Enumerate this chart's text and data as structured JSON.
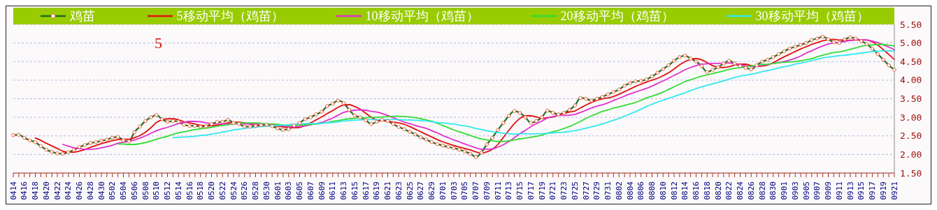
{
  "chart_data": {
    "type": "line",
    "legend": "top",
    "grid": "y",
    "ylim": [
      1.5,
      5.5
    ],
    "yticks": [
      {
        "value": 1.5,
        "label": "1.50"
      },
      {
        "value": 2,
        "label": "2.00"
      },
      {
        "value": 2.5,
        "label": "2.50"
      },
      {
        "value": 3,
        "label": "3.00"
      },
      {
        "value": 3.5,
        "label": "3.50"
      },
      {
        "value": 4,
        "label": "4.00"
      },
      {
        "value": 4.5,
        "label": "4.50"
      },
      {
        "value": 5,
        "label": "5.00"
      },
      {
        "value": 5.5,
        "label": "5.50"
      }
    ],
    "annotations": [
      "5"
    ],
    "categories": [
      "0414",
      null,
      "0416",
      null,
      "0418",
      null,
      "0420",
      null,
      "0422",
      null,
      "0424",
      null,
      "0426",
      null,
      "0428",
      null,
      "0430",
      null,
      "0502",
      null,
      "0504",
      null,
      "0506",
      null,
      "0508",
      null,
      "0510",
      null,
      "0512",
      null,
      "0514",
      null,
      "0516",
      null,
      "0518",
      null,
      "0520",
      null,
      "0522",
      null,
      "0524",
      null,
      "0526",
      null,
      "0528",
      null,
      "0530",
      null,
      "0601",
      null,
      "0603",
      null,
      "0605",
      null,
      "0607",
      null,
      "0609",
      null,
      "0611",
      null,
      "0613",
      null,
      "0615",
      null,
      "0617",
      null,
      "0619",
      null,
      "0621",
      null,
      "0623",
      null,
      "0625",
      null,
      "0627",
      null,
      "0629",
      null,
      "0701",
      null,
      "0703",
      null,
      "0705",
      null,
      "0707",
      null,
      "0709",
      null,
      "0711",
      null,
      "0713",
      null,
      "0715",
      null,
      "0717",
      null,
      "0719",
      null,
      "0721",
      null,
      "0723",
      null,
      "0725",
      null,
      "0727",
      null,
      "0729",
      null,
      "0731",
      null,
      "0802",
      null,
      "0804",
      null,
      "0806",
      null,
      "0808",
      null,
      "0810",
      null,
      "0812",
      null,
      "0814",
      null,
      "0816",
      null,
      "0818",
      null,
      "0820",
      null,
      "0822",
      null,
      "0824",
      null,
      "0826",
      null,
      "0828",
      null,
      "0830",
      null,
      "0901",
      null,
      "0903",
      null,
      "0905",
      null,
      "0907",
      null,
      "0909",
      null,
      "0911",
      null,
      "0913",
      null,
      "0915",
      null,
      "0917",
      null,
      "0919",
      null,
      "0921"
    ],
    "series": [
      {
        "name": "鸡苗",
        "color": "#1e6e1e",
        "marker": "circle",
        "values": [
          2.52,
          2.53,
          2.45,
          2.38,
          2.33,
          2.22,
          2.13,
          2.07,
          2.03,
          2.02,
          2.06,
          2.12,
          2.2,
          2.25,
          2.31,
          2.33,
          2.37,
          2.4,
          2.45,
          2.47,
          2.38,
          2.35,
          2.6,
          2.75,
          2.9,
          3.0,
          3.06,
          2.95,
          2.88,
          2.9,
          2.88,
          2.8,
          2.77,
          2.77,
          2.75,
          2.76,
          2.82,
          2.87,
          2.88,
          2.93,
          2.85,
          2.82,
          2.75,
          2.75,
          2.77,
          2.79,
          2.8,
          2.76,
          2.7,
          2.66,
          2.68,
          2.78,
          2.85,
          2.95,
          3.0,
          3.08,
          3.15,
          3.3,
          3.37,
          3.45,
          3.38,
          3.2,
          3.05,
          3.0,
          2.92,
          2.82,
          2.88,
          2.93,
          2.9,
          2.82,
          2.74,
          2.68,
          2.61,
          2.54,
          2.46,
          2.4,
          2.33,
          2.28,
          2.24,
          2.2,
          2.17,
          2.13,
          2.08,
          2.02,
          1.93,
          2.05,
          2.27,
          2.45,
          2.66,
          2.85,
          3.04,
          3.17,
          3.12,
          3.0,
          2.85,
          2.9,
          3.0,
          3.18,
          3.12,
          3.08,
          3.12,
          3.2,
          3.32,
          3.52,
          3.5,
          3.45,
          3.5,
          3.55,
          3.62,
          3.68,
          3.75,
          3.85,
          3.92,
          3.97,
          3.98,
          4.02,
          4.1,
          4.2,
          4.3,
          4.4,
          4.52,
          4.62,
          4.66,
          4.58,
          4.5,
          4.38,
          4.22,
          4.28,
          4.35,
          4.45,
          4.52,
          4.45,
          4.38,
          4.33,
          4.29,
          4.4,
          4.5,
          4.55,
          4.62,
          4.7,
          4.78,
          4.85,
          4.9,
          4.95,
          5.0,
          5.08,
          5.12,
          5.17,
          5.1,
          5.02,
          5.0,
          5.1,
          5.15,
          5.12,
          5.05,
          4.97,
          4.85,
          4.7,
          4.55,
          4.4,
          4.28
        ]
      },
      {
        "name": "5移动平均（鸡苗）",
        "color": "#e01010",
        "marker": "none",
        "values": [
          null,
          null,
          null,
          null,
          2.44,
          2.38,
          2.3,
          2.23,
          2.16,
          2.09,
          2.06,
          2.06,
          2.09,
          2.13,
          2.19,
          2.24,
          2.29,
          2.33,
          2.37,
          2.4,
          2.41,
          2.41,
          2.45,
          2.51,
          2.6,
          2.72,
          2.86,
          2.93,
          2.96,
          2.96,
          2.93,
          2.88,
          2.85,
          2.82,
          2.79,
          2.77,
          2.77,
          2.79,
          2.82,
          2.85,
          2.87,
          2.87,
          2.85,
          2.82,
          2.79,
          2.78,
          2.77,
          2.77,
          2.76,
          2.74,
          2.72,
          2.72,
          2.73,
          2.78,
          2.85,
          2.93,
          3.01,
          3.1,
          3.18,
          3.27,
          3.33,
          3.34,
          3.29,
          3.22,
          3.11,
          3.0,
          2.93,
          2.91,
          2.89,
          2.87,
          2.85,
          2.81,
          2.75,
          2.68,
          2.61,
          2.54,
          2.47,
          2.4,
          2.34,
          2.29,
          2.24,
          2.2,
          2.16,
          2.12,
          2.07,
          2.04,
          2.07,
          2.14,
          2.27,
          2.46,
          2.65,
          2.83,
          2.97,
          3.04,
          3.04,
          3.01,
          2.97,
          2.99,
          3.01,
          3.06,
          3.1,
          3.14,
          3.17,
          3.25,
          3.33,
          3.4,
          3.46,
          3.5,
          3.52,
          3.56,
          3.62,
          3.69,
          3.76,
          3.83,
          3.89,
          3.95,
          4.0,
          4.05,
          4.12,
          4.2,
          4.3,
          4.41,
          4.5,
          4.56,
          4.58,
          4.55,
          4.47,
          4.39,
          4.35,
          4.34,
          4.36,
          4.41,
          4.43,
          4.43,
          4.39,
          4.37,
          4.38,
          4.41,
          4.47,
          4.55,
          4.63,
          4.7,
          4.77,
          4.84,
          4.9,
          4.96,
          5.01,
          5.06,
          5.09,
          5.1,
          5.08,
          5.08,
          5.07,
          5.08,
          5.08,
          5.08,
          5.03,
          4.94,
          4.82,
          4.69,
          4.56
        ]
      },
      {
        "name": "10移动平均（鸡苗）",
        "color": "#e030d0",
        "marker": "none",
        "values": [
          null,
          null,
          null,
          null,
          null,
          null,
          null,
          null,
          null,
          2.27,
          2.22,
          2.18,
          2.16,
          2.14,
          2.14,
          2.15,
          2.18,
          2.21,
          2.25,
          2.3,
          2.33,
          2.35,
          2.39,
          2.44,
          2.5,
          2.57,
          2.64,
          2.69,
          2.73,
          2.78,
          2.83,
          2.87,
          2.89,
          2.89,
          2.88,
          2.85,
          2.83,
          2.82,
          2.82,
          2.82,
          2.82,
          2.82,
          2.82,
          2.82,
          2.82,
          2.82,
          2.82,
          2.81,
          2.79,
          2.77,
          2.75,
          2.74,
          2.75,
          2.77,
          2.8,
          2.83,
          2.86,
          2.92,
          2.98,
          3.06,
          3.13,
          3.17,
          3.19,
          3.2,
          3.19,
          3.16,
          3.14,
          3.1,
          3.05,
          2.99,
          2.93,
          2.87,
          2.83,
          2.78,
          2.74,
          2.7,
          2.64,
          2.58,
          2.51,
          2.45,
          2.39,
          2.34,
          2.28,
          2.23,
          2.18,
          2.14,
          2.14,
          2.15,
          2.2,
          2.26,
          2.35,
          2.45,
          2.56,
          2.65,
          2.75,
          2.83,
          2.9,
          2.98,
          3.02,
          3.05,
          3.05,
          3.06,
          3.08,
          3.13,
          3.19,
          3.25,
          3.3,
          3.34,
          3.39,
          3.45,
          3.51,
          3.57,
          3.63,
          3.68,
          3.73,
          3.78,
          3.84,
          3.91,
          3.98,
          4.05,
          4.13,
          4.2,
          4.28,
          4.34,
          4.39,
          4.43,
          4.44,
          4.45,
          4.45,
          4.46,
          4.46,
          4.44,
          4.41,
          4.39,
          4.37,
          4.37,
          4.4,
          4.42,
          4.45,
          4.47,
          4.5,
          4.54,
          4.59,
          4.65,
          4.73,
          4.79,
          4.86,
          4.92,
          4.97,
          5.0,
          5.02,
          5.04,
          5.07,
          5.09,
          5.09,
          5.08,
          5.05,
          5.01,
          4.95,
          4.89,
          4.82
        ]
      },
      {
        "name": "20移动平均（鸡苗）",
        "color": "#33dd33",
        "marker": "none",
        "values": [
          null,
          null,
          null,
          null,
          null,
          null,
          null,
          null,
          null,
          null,
          null,
          null,
          null,
          null,
          null,
          null,
          null,
          null,
          null,
          2.28,
          2.28,
          2.27,
          2.27,
          2.29,
          2.32,
          2.36,
          2.41,
          2.45,
          2.49,
          2.54,
          2.58,
          2.61,
          2.64,
          2.67,
          2.69,
          2.71,
          2.73,
          2.76,
          2.78,
          2.8,
          2.82,
          2.85,
          2.85,
          2.85,
          2.85,
          2.84,
          2.82,
          2.82,
          2.81,
          2.79,
          2.78,
          2.78,
          2.79,
          2.8,
          2.81,
          2.82,
          2.84,
          2.86,
          2.89,
          2.91,
          2.94,
          2.96,
          2.97,
          2.99,
          2.99,
          3.0,
          3.0,
          3.01,
          3.02,
          3.03,
          3.03,
          3.02,
          3.01,
          2.99,
          2.96,
          2.93,
          2.89,
          2.84,
          2.78,
          2.72,
          2.66,
          2.61,
          2.56,
          2.51,
          2.46,
          2.42,
          2.39,
          2.37,
          2.35,
          2.35,
          2.37,
          2.39,
          2.42,
          2.44,
          2.46,
          2.49,
          2.52,
          2.57,
          2.61,
          2.65,
          2.7,
          2.75,
          2.82,
          2.89,
          2.97,
          3.04,
          3.1,
          3.16,
          3.2,
          3.25,
          3.28,
          3.32,
          3.36,
          3.4,
          3.46,
          3.52,
          3.57,
          3.62,
          3.68,
          3.75,
          3.82,
          3.89,
          3.96,
          4.01,
          4.06,
          4.11,
          4.14,
          4.18,
          4.21,
          4.25,
          4.29,
          4.32,
          4.34,
          4.36,
          4.38,
          4.4,
          4.42,
          4.43,
          4.45,
          4.47,
          4.48,
          4.49,
          4.5,
          4.52,
          4.55,
          4.58,
          4.63,
          4.67,
          4.71,
          4.74,
          4.76,
          4.79,
          4.83,
          4.87,
          4.91,
          4.94,
          4.95,
          4.96,
          4.96,
          4.94,
          4.92
        ]
      },
      {
        "name": "30移动平均（鸡苗）",
        "color": "#33e8f0",
        "marker": "none",
        "values": [
          null,
          null,
          null,
          null,
          null,
          null,
          null,
          null,
          null,
          null,
          null,
          null,
          null,
          null,
          null,
          null,
          null,
          null,
          null,
          null,
          null,
          null,
          null,
          null,
          null,
          null,
          null,
          null,
          null,
          2.45,
          2.46,
          2.47,
          2.48,
          2.49,
          2.51,
          2.52,
          2.55,
          2.57,
          2.6,
          2.63,
          2.66,
          2.68,
          2.7,
          2.72,
          2.73,
          2.75,
          2.76,
          2.77,
          2.78,
          2.79,
          2.8,
          2.81,
          2.82,
          2.83,
          2.83,
          2.83,
          2.84,
          2.85,
          2.86,
          2.88,
          2.9,
          2.91,
          2.92,
          2.93,
          2.94,
          2.94,
          2.94,
          2.94,
          2.94,
          2.94,
          2.94,
          2.93,
          2.93,
          2.92,
          2.91,
          2.9,
          2.88,
          2.86,
          2.85,
          2.83,
          2.82,
          2.79,
          2.77,
          2.74,
          2.7,
          2.67,
          2.64,
          2.61,
          2.59,
          2.57,
          2.56,
          2.55,
          2.56,
          2.56,
          2.55,
          2.56,
          2.56,
          2.57,
          2.58,
          2.59,
          2.6,
          2.62,
          2.64,
          2.67,
          2.71,
          2.74,
          2.78,
          2.82,
          2.87,
          2.92,
          2.97,
          3.03,
          3.09,
          3.15,
          3.22,
          3.29,
          3.35,
          3.41,
          3.46,
          3.51,
          3.56,
          3.61,
          3.66,
          3.72,
          3.77,
          3.82,
          3.86,
          3.9,
          3.94,
          3.98,
          4.03,
          4.07,
          4.11,
          4.13,
          4.16,
          4.19,
          4.23,
          4.26,
          4.29,
          4.33,
          4.36,
          4.39,
          4.43,
          4.46,
          4.49,
          4.53,
          4.56,
          4.6,
          4.62,
          4.64,
          4.66,
          4.67,
          4.69,
          4.71,
          4.73,
          4.75,
          4.77,
          4.78,
          4.79,
          4.79,
          4.78
        ]
      }
    ]
  }
}
